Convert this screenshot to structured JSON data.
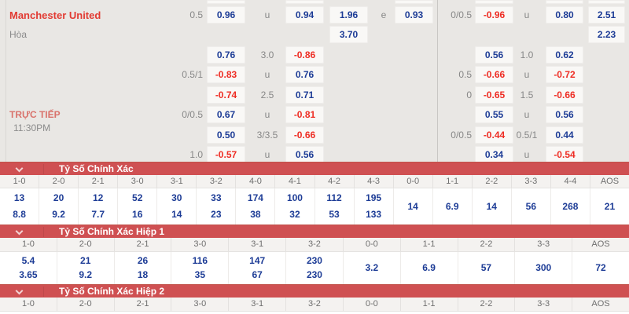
{
  "colors": {
    "accent_red": "#cf5052",
    "odds_blue": "#1d3c96",
    "odds_red": "#ee2d24",
    "team_red": "#e23b33",
    "section_bg": "#e9e7e4"
  },
  "market": {
    "team": "Manchester United",
    "draw": "Hòa",
    "live": "TRỰC TIẾP",
    "time": "11:30PM"
  },
  "odds": {
    "r1": {
      "lh": "0.5",
      "lv1": "0.96",
      "lm": "u",
      "lv2": "0.94",
      "x": "1.96",
      "em": "e",
      "ev": "0.93",
      "rh": "0/0.5",
      "rv1": "-0.96",
      "rm": "u",
      "rv2": "0.80",
      "far": "2.51"
    },
    "r2": {
      "x": "3.70",
      "far": "2.23"
    },
    "r3": {
      "lv1": "0.76",
      "lm": "3.0",
      "lv2": "-0.86",
      "rv1": "0.56",
      "rm": "1.0",
      "rv2": "0.62"
    },
    "r4": {
      "lh": "0.5/1",
      "lv1": "-0.83",
      "lm": "u",
      "lv2": "0.76",
      "rh": "0.5",
      "rv1": "-0.66",
      "rm": "u",
      "rv2": "-0.72"
    },
    "r5": {
      "lv1": "-0.74",
      "lm": "2.5",
      "lv2": "0.71",
      "rh": "0",
      "rv1": "-0.65",
      "rm": "1.5",
      "rv2": "-0.66"
    },
    "r6": {
      "lh": "0/0.5",
      "lv1": "0.67",
      "lm": "u",
      "lv2": "-0.81",
      "rv1": "0.55",
      "rm": "u",
      "rv2": "0.56"
    },
    "r7": {
      "lv1": "0.50",
      "lm": "3/3.5",
      "lv2": "-0.66",
      "rh": "0/0.5",
      "rv1": "-0.44",
      "rm": "0.5/1",
      "rv2": "0.44"
    },
    "r8": {
      "lh": "1.0",
      "lv1": "-0.57",
      "lm": "u",
      "lv2": "0.56",
      "rv1": "0.34",
      "rm": "u",
      "rv2": "-0.54"
    }
  },
  "sections": [
    {
      "title": "Tỷ Số Chính Xác",
      "cols": [
        {
          "score": "1-0",
          "odds": [
            "13",
            "8.8"
          ]
        },
        {
          "score": "2-0",
          "odds": [
            "20",
            "9.2"
          ]
        },
        {
          "score": "2-1",
          "odds": [
            "12",
            "7.7"
          ]
        },
        {
          "score": "3-0",
          "odds": [
            "52",
            "16"
          ]
        },
        {
          "score": "3-1",
          "odds": [
            "30",
            "14"
          ]
        },
        {
          "score": "3-2",
          "odds": [
            "33",
            "23"
          ]
        },
        {
          "score": "4-0",
          "odds": [
            "174",
            "38"
          ]
        },
        {
          "score": "4-1",
          "odds": [
            "100",
            "32"
          ]
        },
        {
          "score": "4-2",
          "odds": [
            "112",
            "53"
          ]
        },
        {
          "score": "4-3",
          "odds": [
            "195",
            "133"
          ]
        },
        {
          "score": "0-0",
          "odds": [
            "14"
          ]
        },
        {
          "score": "1-1",
          "odds": [
            "6.9"
          ]
        },
        {
          "score": "2-2",
          "odds": [
            "14"
          ]
        },
        {
          "score": "3-3",
          "odds": [
            "56"
          ]
        },
        {
          "score": "4-4",
          "odds": [
            "268"
          ]
        },
        {
          "score": "AOS",
          "odds": [
            "21"
          ]
        }
      ]
    },
    {
      "title": "Tỷ Số Chính Xác Hiệp 1",
      "cols": [
        {
          "score": "1-0",
          "odds": [
            "5.4",
            "3.65"
          ]
        },
        {
          "score": "2-0",
          "odds": [
            "21",
            "9.2"
          ]
        },
        {
          "score": "2-1",
          "odds": [
            "26",
            "18"
          ]
        },
        {
          "score": "3-0",
          "odds": [
            "116",
            "35"
          ]
        },
        {
          "score": "3-1",
          "odds": [
            "147",
            "67"
          ]
        },
        {
          "score": "3-2",
          "odds": [
            "230",
            "230"
          ]
        },
        {
          "score": "0-0",
          "odds": [
            "3.2"
          ]
        },
        {
          "score": "1-1",
          "odds": [
            "6.9"
          ]
        },
        {
          "score": "2-2",
          "odds": [
            "57"
          ]
        },
        {
          "score": "3-3",
          "odds": [
            "300"
          ]
        },
        {
          "score": "AOS",
          "odds": [
            "72"
          ]
        }
      ]
    },
    {
      "title": "Tỷ Số Chính Xác Hiệp 2",
      "cols": [
        {
          "score": "1-0",
          "odds": []
        },
        {
          "score": "2-0",
          "odds": []
        },
        {
          "score": "2-1",
          "odds": []
        },
        {
          "score": "3-0",
          "odds": []
        },
        {
          "score": "3-1",
          "odds": []
        },
        {
          "score": "3-2",
          "odds": []
        },
        {
          "score": "0-0",
          "odds": []
        },
        {
          "score": "1-1",
          "odds": []
        },
        {
          "score": "2-2",
          "odds": []
        },
        {
          "score": "3-3",
          "odds": []
        },
        {
          "score": "AOS",
          "odds": []
        }
      ]
    }
  ]
}
